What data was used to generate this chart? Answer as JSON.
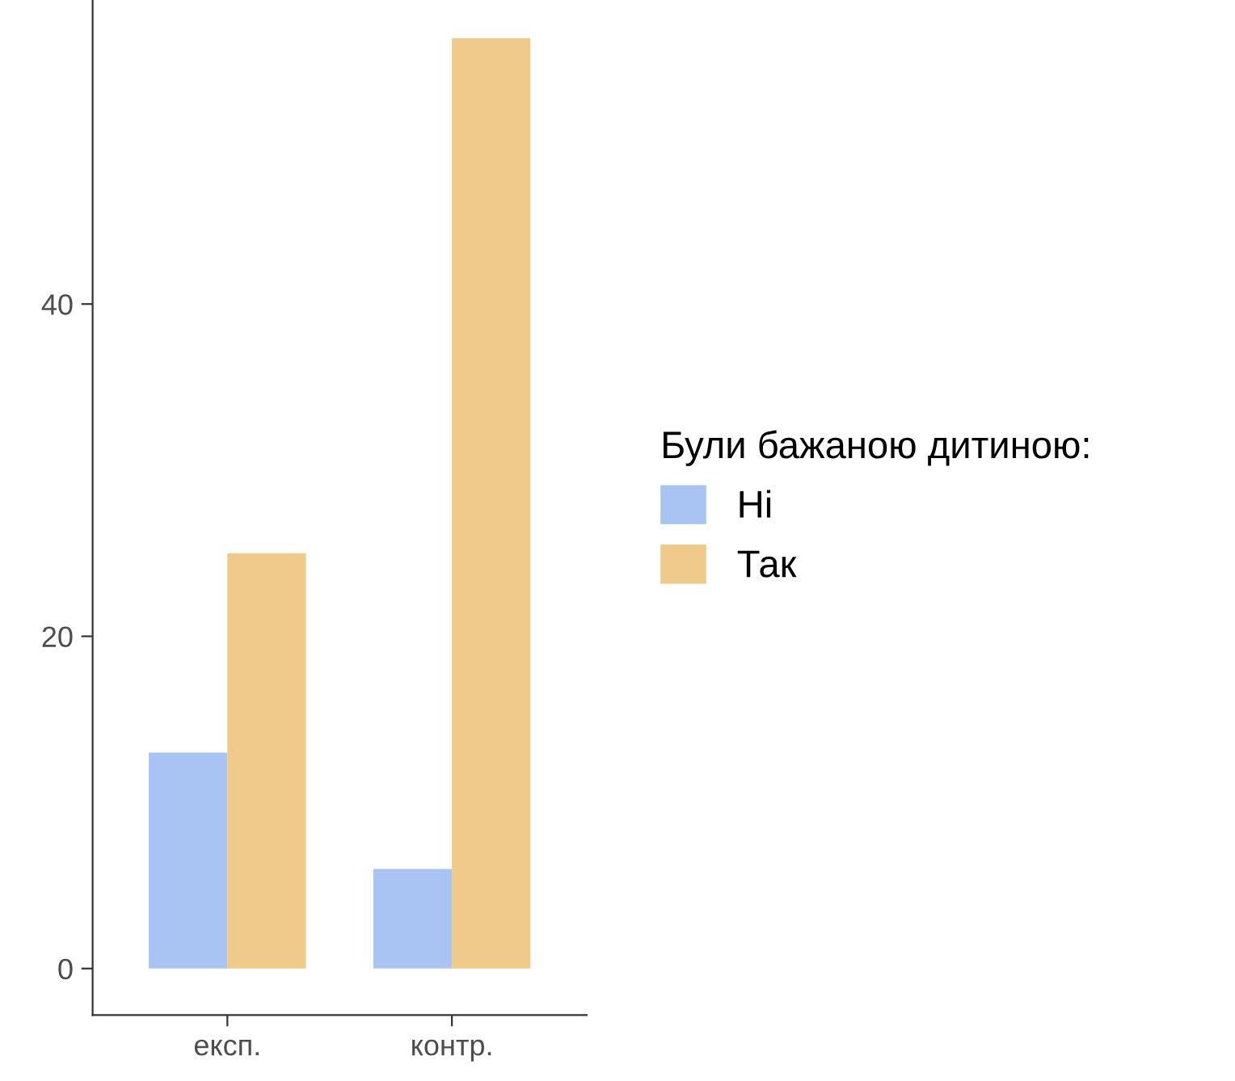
{
  "chart_data": {
    "type": "bar",
    "categories": [
      "експ.",
      "контр."
    ],
    "series": [
      {
        "name": "Ні",
        "color": "#a9c4f2",
        "values": [
          13,
          6
        ]
      },
      {
        "name": "Так",
        "color": "#efca8a",
        "values": [
          25,
          56
        ]
      }
    ],
    "legend_title": "Були бажаною дитиною:",
    "legend": "right",
    "ylim": [
      -2.8,
      58.3
    ],
    "yticks": [
      0,
      20,
      40
    ],
    "grid": false
  }
}
